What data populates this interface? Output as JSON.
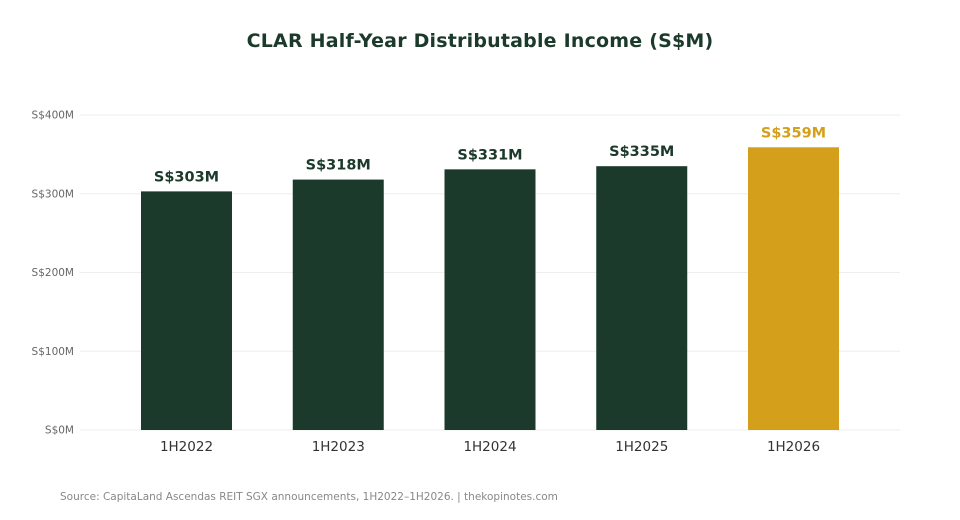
{
  "title": "CLAR Half-Year Distributable Income (S$M)",
  "source": "Source: CapitaLand Ascendas REIT SGX announcements, 1H2022–1H2026.  |  thekopinotes.com",
  "colors": {
    "primary": "#1c3a2b",
    "highlight": "#d4a01c",
    "grid": "#eeeeee",
    "tick_text": "#666666",
    "category_text": "#333333"
  },
  "chart_data": {
    "type": "bar",
    "title": "CLAR Half-Year Distributable Income (S$M)",
    "xlabel": "",
    "ylabel": "",
    "categories": [
      "1H2022",
      "1H2023",
      "1H2024",
      "1H2025",
      "1H2026"
    ],
    "values": [
      303,
      318,
      331,
      335,
      359
    ],
    "data_labels": [
      "S$303M",
      "S$318M",
      "S$331M",
      "S$335M",
      "S$359M"
    ],
    "highlighted_category": "1H2026",
    "ylim": [
      0,
      400
    ],
    "yticks": [
      0,
      100,
      200,
      300,
      400
    ],
    "ytick_labels": [
      "S$0M",
      "S$100M",
      "S$200M",
      "S$300M",
      "S$400M"
    ],
    "grid": true,
    "legend": "none"
  }
}
